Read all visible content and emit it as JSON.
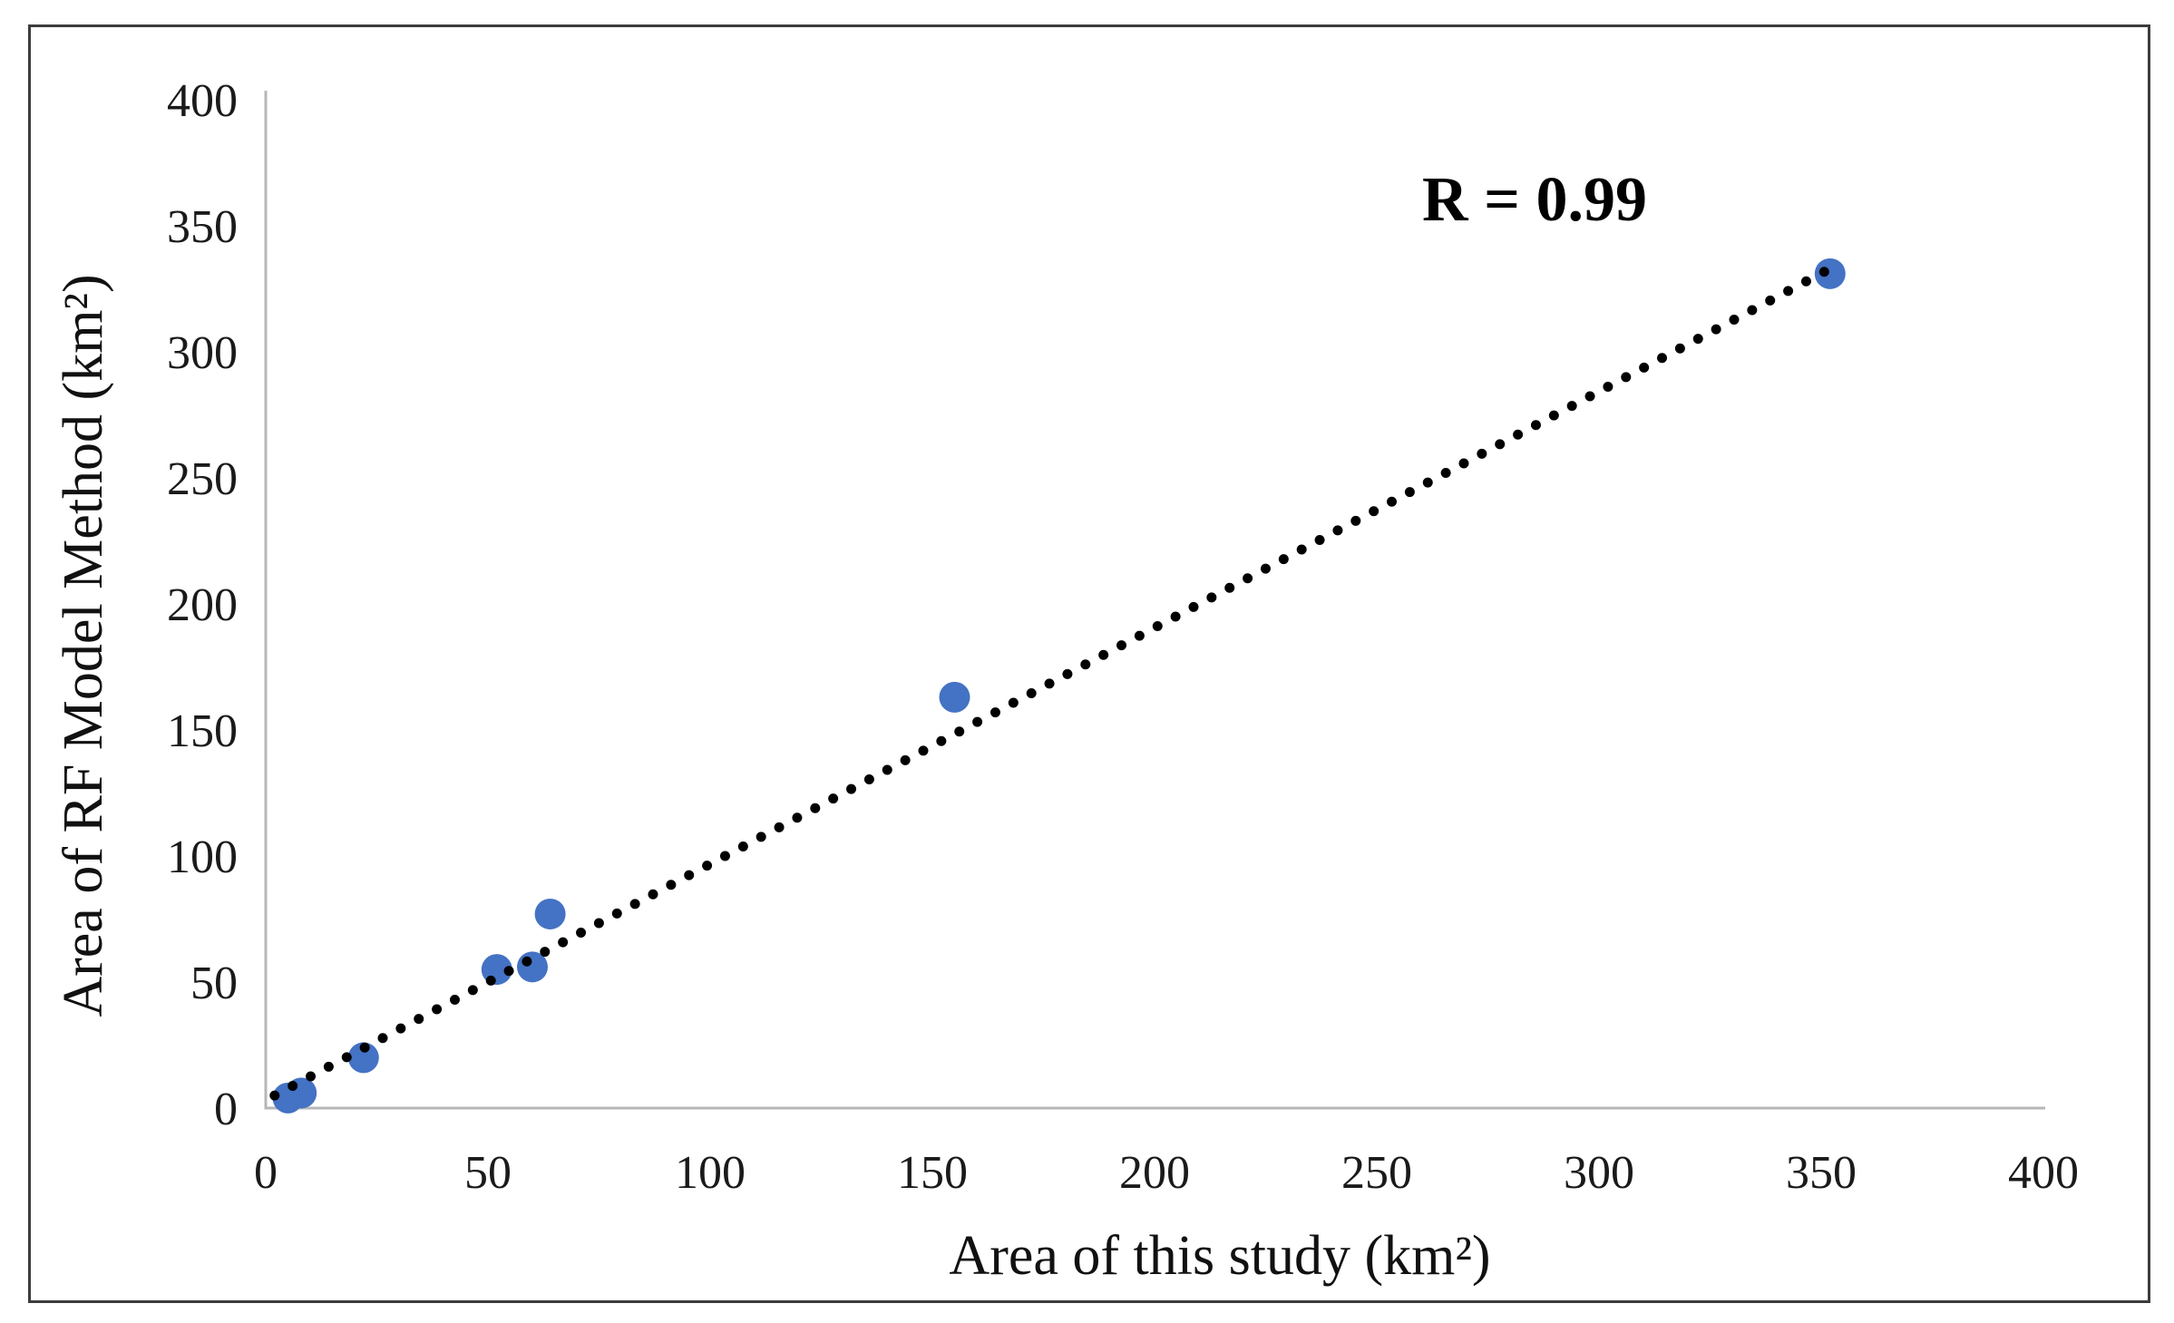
{
  "figure": {
    "annotation_label": "R = 0.99",
    "x_axis_title": "Area of this study (km²)",
    "y_axis_title": "Area of RF Model Method (km²)"
  },
  "chart_data": {
    "type": "scatter",
    "title": "",
    "xlabel": "Area of this study (km²)",
    "ylabel": "Area of RF Model Method (km²)",
    "xlim": [
      0,
      400
    ],
    "ylim": [
      0,
      400
    ],
    "x_ticks": [
      0,
      50,
      100,
      150,
      200,
      250,
      300,
      350,
      400
    ],
    "y_ticks": [
      0,
      50,
      100,
      150,
      200,
      250,
      300,
      350,
      400
    ],
    "grid": false,
    "legend": "none",
    "points": [
      {
        "x": 5,
        "y": 4
      },
      {
        "x": 8,
        "y": 6
      },
      {
        "x": 22,
        "y": 20
      },
      {
        "x": 52,
        "y": 55
      },
      {
        "x": 60,
        "y": 56
      },
      {
        "x": 64,
        "y": 77
      },
      {
        "x": 155,
        "y": 163
      },
      {
        "x": 352,
        "y": 331
      }
    ],
    "trendline": {
      "style": "dotted",
      "from": {
        "x": 2,
        "y": 5
      },
      "to": {
        "x": 352,
        "y": 333
      }
    },
    "annotation": {
      "text": "R = 0.99",
      "x": 286,
      "y": 352
    },
    "colors": {
      "marker": "#4472C4",
      "trendline": "#000000",
      "axis_line": "#B7B7B7",
      "text": "#1A1A1A",
      "border": "#3C3C3C"
    }
  }
}
